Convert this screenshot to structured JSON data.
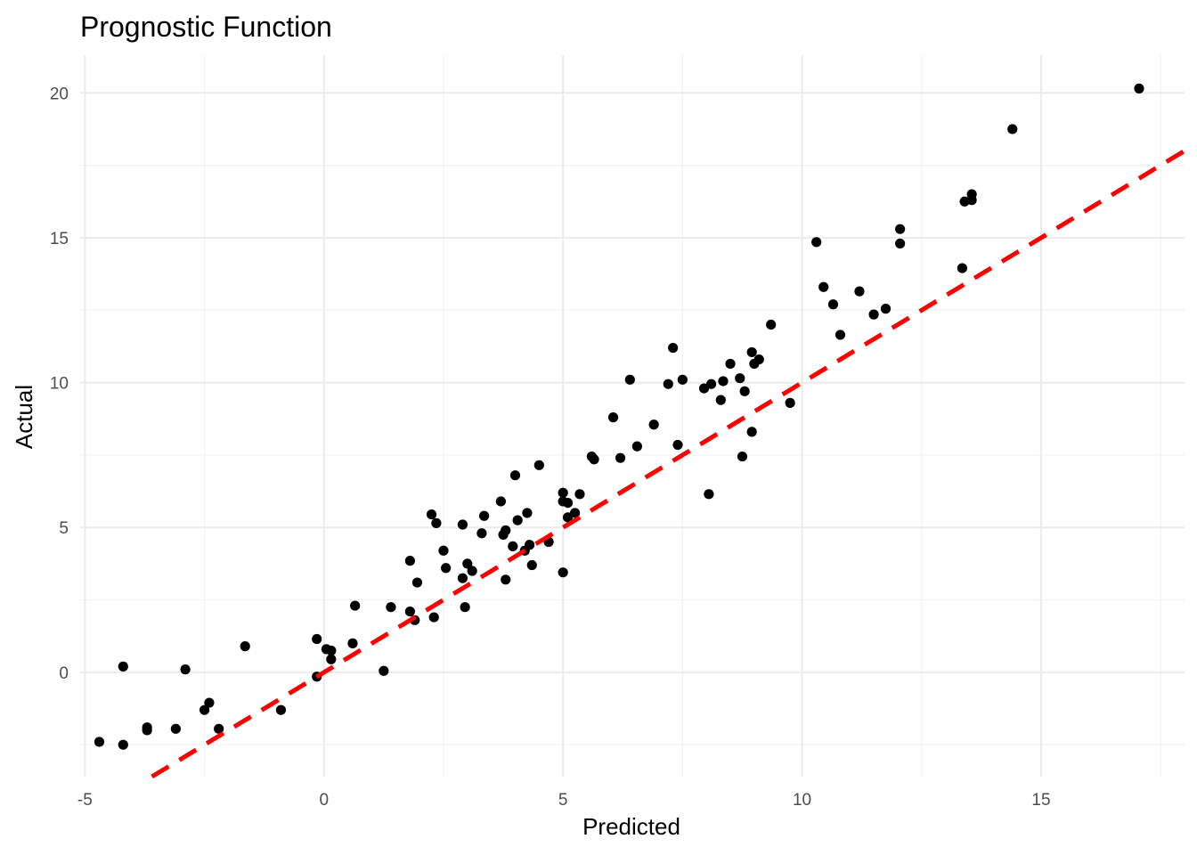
{
  "chart_data": {
    "type": "scatter",
    "title": "Prognostic Function",
    "xlabel": "Predicted",
    "ylabel": "Actual",
    "xlim": [
      -5.1,
      18.0
    ],
    "ylim": [
      -3.6,
      21.3
    ],
    "x_ticks": [
      -5,
      0,
      5,
      10,
      15
    ],
    "y_ticks": [
      0,
      5,
      10,
      15,
      20
    ],
    "grid": true,
    "reference_line": {
      "slope": 1,
      "intercept": 0,
      "style": "dashed",
      "color": "#ff0000"
    },
    "point_color": "#000000",
    "points": [
      [
        -4.7,
        -2.4
      ],
      [
        -4.2,
        0.2
      ],
      [
        -4.2,
        -2.5
      ],
      [
        -3.7,
        -1.9
      ],
      [
        -3.7,
        -2.0
      ],
      [
        -3.1,
        -1.95
      ],
      [
        -2.9,
        0.1
      ],
      [
        -2.5,
        -1.3
      ],
      [
        -2.4,
        -1.05
      ],
      [
        -2.2,
        -1.95
      ],
      [
        -1.65,
        0.9
      ],
      [
        -0.9,
        -1.3
      ],
      [
        -0.15,
        1.15
      ],
      [
        -0.15,
        -0.15
      ],
      [
        0.05,
        0.8
      ],
      [
        0.15,
        0.75
      ],
      [
        0.15,
        0.45
      ],
      [
        0.6,
        1.0
      ],
      [
        0.65,
        2.3
      ],
      [
        1.25,
        0.05
      ],
      [
        1.4,
        2.25
      ],
      [
        1.8,
        2.1
      ],
      [
        1.8,
        3.85
      ],
      [
        1.9,
        1.8
      ],
      [
        1.95,
        3.1
      ],
      [
        2.25,
        5.45
      ],
      [
        2.3,
        1.9
      ],
      [
        2.35,
        5.15
      ],
      [
        2.5,
        4.2
      ],
      [
        2.55,
        3.6
      ],
      [
        2.9,
        5.1
      ],
      [
        2.9,
        3.25
      ],
      [
        2.95,
        2.25
      ],
      [
        3.0,
        3.75
      ],
      [
        3.1,
        3.5
      ],
      [
        3.3,
        4.8
      ],
      [
        3.35,
        5.4
      ],
      [
        3.7,
        5.9
      ],
      [
        3.75,
        4.75
      ],
      [
        3.8,
        3.2
      ],
      [
        3.8,
        4.9
      ],
      [
        3.95,
        4.35
      ],
      [
        4.0,
        6.8
      ],
      [
        4.05,
        5.25
      ],
      [
        4.2,
        4.2
      ],
      [
        4.25,
        5.5
      ],
      [
        4.3,
        4.4
      ],
      [
        4.35,
        3.7
      ],
      [
        4.5,
        7.15
      ],
      [
        4.7,
        4.5
      ],
      [
        5.0,
        6.2
      ],
      [
        5.0,
        5.9
      ],
      [
        5.0,
        3.45
      ],
      [
        5.1,
        5.35
      ],
      [
        5.1,
        5.85
      ],
      [
        5.25,
        5.5
      ],
      [
        5.35,
        6.15
      ],
      [
        5.6,
        7.45
      ],
      [
        5.65,
        7.35
      ],
      [
        6.05,
        8.8
      ],
      [
        6.2,
        7.4
      ],
      [
        6.4,
        10.1
      ],
      [
        6.55,
        7.8
      ],
      [
        6.9,
        8.55
      ],
      [
        7.2,
        9.95
      ],
      [
        7.3,
        11.2
      ],
      [
        7.4,
        7.85
      ],
      [
        7.5,
        10.1
      ],
      [
        7.95,
        9.8
      ],
      [
        8.05,
        6.15
      ],
      [
        8.1,
        9.95
      ],
      [
        8.3,
        9.4
      ],
      [
        8.35,
        10.05
      ],
      [
        8.5,
        10.65
      ],
      [
        8.7,
        10.15
      ],
      [
        8.75,
        7.45
      ],
      [
        8.8,
        9.7
      ],
      [
        8.95,
        11.05
      ],
      [
        8.95,
        8.3
      ],
      [
        9.0,
        10.65
      ],
      [
        9.1,
        10.8
      ],
      [
        9.35,
        12.0
      ],
      [
        9.75,
        9.3
      ],
      [
        10.3,
        14.85
      ],
      [
        10.45,
        13.3
      ],
      [
        10.65,
        12.7
      ],
      [
        10.8,
        11.65
      ],
      [
        11.2,
        13.15
      ],
      [
        11.5,
        12.35
      ],
      [
        11.75,
        12.55
      ],
      [
        12.05,
        15.3
      ],
      [
        12.05,
        14.8
      ],
      [
        13.35,
        13.95
      ],
      [
        13.4,
        16.25
      ],
      [
        13.55,
        16.3
      ],
      [
        13.55,
        16.5
      ],
      [
        14.4,
        18.75
      ],
      [
        17.05,
        20.15
      ]
    ]
  }
}
